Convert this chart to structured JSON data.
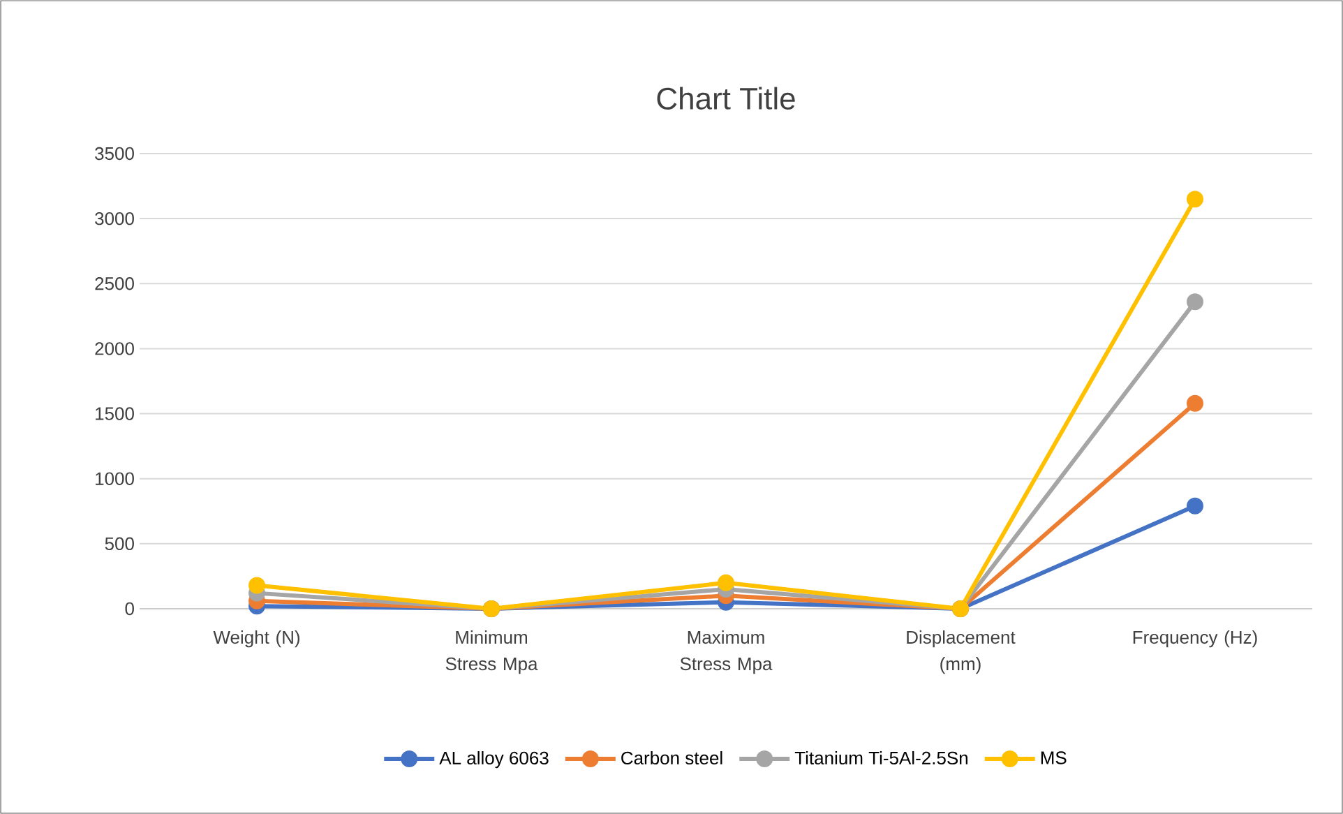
{
  "chart_data": {
    "type": "line",
    "title": "Chart Title",
    "categories": [
      "Weight (N)",
      "Minimum Stress Mpa",
      "Maximum Stress Mpa",
      "Displacement (mm)",
      "Frequency (Hz)"
    ],
    "series": [
      {
        "name": "AL alloy 6063",
        "color": "#4472c4",
        "values": [
          20,
          0,
          50,
          0,
          790
        ]
      },
      {
        "name": "Carbon steel",
        "color": "#ed7d31",
        "values": [
          60,
          0,
          100,
          0,
          1580
        ]
      },
      {
        "name": "Titanium Ti-5Al-2.5Sn",
        "color": "#a5a5a5",
        "values": [
          120,
          0,
          150,
          0,
          2360
        ]
      },
      {
        "name": "MS",
        "color": "#ffc000",
        "values": [
          180,
          0,
          200,
          0,
          3150
        ]
      }
    ],
    "ylim": [
      0,
      3500
    ],
    "yticks": [
      0,
      500,
      1000,
      1500,
      2000,
      2500,
      3000,
      3500
    ],
    "grid": "y",
    "legend": "bottom",
    "marker": "circle",
    "line_style": "solid"
  }
}
